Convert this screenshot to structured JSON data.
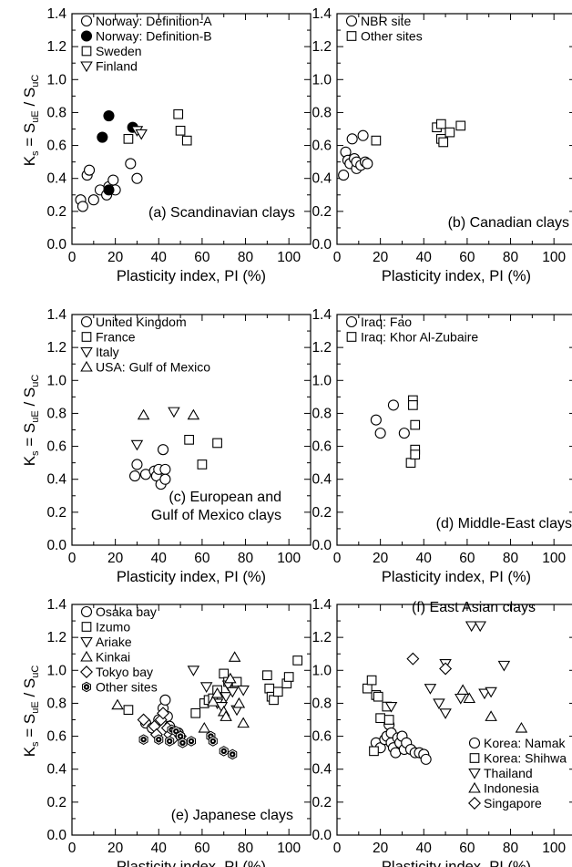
{
  "figure": {
    "ylabel_main": "K",
    "ylabel_sub_s": "s",
    "ylabel_eq": " = S",
    "ylabel_sub_ue": "uE",
    "ylabel_slash": " / S",
    "ylabel_sub_uc": "uC",
    "xlabel": "Plasticity index, PI (%)"
  },
  "chart_data": [
    {
      "type": "scatter",
      "caption_lines": [
        "(a) Scandinavian clays"
      ],
      "xlim": [
        0,
        110
      ],
      "ylim": [
        0,
        1.4
      ],
      "xticks": [
        "0",
        "20",
        "40",
        "60",
        "80",
        "100"
      ],
      "yticks": [
        "0.0",
        "0.2",
        "0.4",
        "0.6",
        "0.8",
        "1.0",
        "1.2",
        "1.4"
      ],
      "series": [
        {
          "name": "Norway: Definition-A",
          "marker": "circle",
          "fill": "#ffffff",
          "points": [
            [
              4,
              0.27
            ],
            [
              5,
              0.23
            ],
            [
              7,
              0.42
            ],
            [
              8,
              0.45
            ],
            [
              10,
              0.27
            ],
            [
              13,
              0.33
            ],
            [
              16,
              0.3
            ],
            [
              17,
              0.35
            ],
            [
              19,
              0.39
            ],
            [
              20,
              0.33
            ],
            [
              27,
              0.49
            ],
            [
              30,
              0.4
            ]
          ]
        },
        {
          "name": "Norway: Definition-B",
          "marker": "circle",
          "fill": "#000000",
          "points": [
            [
              14,
              0.65
            ],
            [
              17,
              0.78
            ],
            [
              17,
              0.33
            ],
            [
              28,
              0.71
            ]
          ]
        },
        {
          "name": "Sweden",
          "marker": "square",
          "fill": "#ffffff",
          "points": [
            [
              26,
              0.64
            ],
            [
              49,
              0.79
            ],
            [
              50,
              0.69
            ],
            [
              53,
              0.63
            ]
          ]
        },
        {
          "name": "Finland",
          "marker": "triangle-down",
          "fill": "#ffffff",
          "points": [
            [
              30,
              0.69
            ],
            [
              32,
              0.67
            ]
          ]
        }
      ]
    },
    {
      "type": "scatter",
      "caption_lines": [
        "(b) Canadian clays"
      ],
      "xlim": [
        0,
        110
      ],
      "ylim": [
        0,
        1.4
      ],
      "xticks": [
        "0",
        "20",
        "40",
        "60",
        "80",
        "100"
      ],
      "yticks": [
        "0.0",
        "0.2",
        "0.4",
        "0.6",
        "0.8",
        "1.0",
        "1.2",
        "1.4"
      ],
      "series": [
        {
          "name": "NBR site",
          "marker": "circle",
          "fill": "#ffffff",
          "points": [
            [
              3,
              0.42
            ],
            [
              4,
              0.56
            ],
            [
              5,
              0.51
            ],
            [
              6,
              0.49
            ],
            [
              7,
              0.64
            ],
            [
              8,
              0.52
            ],
            [
              9,
              0.46
            ],
            [
              9,
              0.5
            ],
            [
              11,
              0.48
            ],
            [
              12,
              0.66
            ],
            [
              13,
              0.5
            ],
            [
              14,
              0.49
            ]
          ]
        },
        {
          "name": "Other sites",
          "marker": "square",
          "fill": "#ffffff",
          "points": [
            [
              18,
              0.63
            ],
            [
              46,
              0.71
            ],
            [
              48,
              0.73
            ],
            [
              48,
              0.64
            ],
            [
              49,
              0.62
            ],
            [
              52,
              0.68
            ],
            [
              57,
              0.72
            ]
          ]
        }
      ]
    },
    {
      "type": "scatter",
      "caption_lines": [
        "(c) European and",
        "Gulf of Mexico clays"
      ],
      "xlim": [
        0,
        110
      ],
      "ylim": [
        0,
        1.4
      ],
      "xticks": [
        "0",
        "20",
        "40",
        "60",
        "80",
        "100"
      ],
      "yticks": [
        "0.0",
        "0.2",
        "0.4",
        "0.6",
        "0.8",
        "1.0",
        "1.2",
        "1.4"
      ],
      "series": [
        {
          "name": "United Kingdom",
          "marker": "circle",
          "fill": "#ffffff",
          "points": [
            [
              29,
              0.42
            ],
            [
              30,
              0.49
            ],
            [
              34,
              0.43
            ],
            [
              38,
              0.45
            ],
            [
              39,
              0.42
            ],
            [
              40,
              0.46
            ],
            [
              41,
              0.37
            ],
            [
              42,
              0.58
            ],
            [
              43,
              0.46
            ],
            [
              43,
              0.4
            ]
          ]
        },
        {
          "name": "France",
          "marker": "square",
          "fill": "#ffffff",
          "points": [
            [
              54,
              0.64
            ],
            [
              60,
              0.49
            ],
            [
              67,
              0.62
            ]
          ]
        },
        {
          "name": "Italy",
          "marker": "triangle-down",
          "fill": "#ffffff",
          "points": [
            [
              30,
              0.61
            ],
            [
              47,
              0.81
            ]
          ]
        },
        {
          "name": "USA: Gulf of Mexico",
          "marker": "triangle-up",
          "fill": "#ffffff",
          "points": [
            [
              33,
              0.79
            ],
            [
              56,
              0.79
            ]
          ]
        }
      ]
    },
    {
      "type": "scatter",
      "caption_lines": [
        "(d) Middle-East clays"
      ],
      "xlim": [
        0,
        110
      ],
      "ylim": [
        0,
        1.4
      ],
      "xticks": [
        "0",
        "20",
        "40",
        "60",
        "80",
        "100"
      ],
      "yticks": [
        "0.0",
        "0.2",
        "0.4",
        "0.6",
        "0.8",
        "1.0",
        "1.2",
        "1.4"
      ],
      "series": [
        {
          "name": "Iraq: Fao",
          "marker": "circle",
          "fill": "#ffffff",
          "points": [
            [
              18,
              0.76
            ],
            [
              20,
              0.68
            ],
            [
              26,
              0.85
            ],
            [
              31,
              0.68
            ]
          ]
        },
        {
          "name": "Iraq: Khor Al-Zubaire",
          "marker": "square",
          "fill": "#ffffff",
          "points": [
            [
              35,
              0.88
            ],
            [
              35,
              0.85
            ],
            [
              34,
              0.5
            ],
            [
              36,
              0.73
            ],
            [
              36,
              0.58
            ],
            [
              36,
              0.55
            ]
          ]
        }
      ]
    },
    {
      "type": "scatter",
      "caption_lines": [
        "(e) Japanese clays"
      ],
      "xlim": [
        0,
        110
      ],
      "ylim": [
        0,
        1.4
      ],
      "xticks": [
        "0",
        "20",
        "40",
        "60",
        "80",
        "100"
      ],
      "yticks": [
        "0.0",
        "0.2",
        "0.4",
        "0.6",
        "0.8",
        "1.0",
        "1.2",
        "1.4"
      ],
      "series": [
        {
          "name": "Osaka bay",
          "marker": "circle",
          "fill": "#ffffff",
          "points": [
            [
              34,
              0.68
            ],
            [
              37,
              0.65
            ],
            [
              40,
              0.7
            ],
            [
              42,
              0.77
            ],
            [
              43,
              0.82
            ],
            [
              44,
              0.72
            ],
            [
              45,
              0.66
            ],
            [
              47,
              0.63
            ],
            [
              49,
              0.62
            ]
          ]
        },
        {
          "name": "Izumo",
          "marker": "square",
          "fill": "#ffffff",
          "points": [
            [
              26,
              0.76
            ],
            [
              57,
              0.74
            ],
            [
              61,
              0.8
            ],
            [
              63,
              0.82
            ],
            [
              65,
              0.83
            ],
            [
              67,
              0.88
            ],
            [
              70,
              0.98
            ],
            [
              72,
              0.93
            ],
            [
              76,
              0.93
            ],
            [
              90,
              0.97
            ],
            [
              91,
              0.89
            ],
            [
              92,
              0.84
            ],
            [
              93,
              0.82
            ],
            [
              95,
              0.87
            ],
            [
              99,
              0.92
            ],
            [
              100,
              0.96
            ],
            [
              104,
              1.06
            ]
          ]
        },
        {
          "name": "Ariake",
          "marker": "triangle-down",
          "fill": "#ffffff",
          "points": [
            [
              56,
              1.0
            ],
            [
              62,
              0.9
            ],
            [
              67,
              0.8
            ],
            [
              69,
              0.78
            ],
            [
              71,
              0.84
            ],
            [
              72,
              0.91
            ],
            [
              74,
              0.87
            ],
            [
              76,
              0.76
            ],
            [
              79,
              0.88
            ]
          ]
        },
        {
          "name": "Kinkai",
          "marker": "triangle-up",
          "fill": "#ffffff",
          "points": [
            [
              21,
              0.79
            ],
            [
              61,
              0.65
            ],
            [
              65,
              0.81
            ],
            [
              67,
              0.86
            ],
            [
              70,
              0.75
            ],
            [
              71,
              0.72
            ],
            [
              73,
              0.95
            ],
            [
              75,
              1.08
            ],
            [
              77,
              0.8
            ],
            [
              79,
              0.68
            ]
          ]
        },
        {
          "name": "Tokyo bay",
          "marker": "diamond",
          "fill": "#ffffff",
          "points": [
            [
              33,
              0.7
            ],
            [
              38,
              0.66
            ],
            [
              39,
              0.61
            ],
            [
              41,
              0.7
            ],
            [
              42,
              0.74
            ],
            [
              44,
              0.65
            ],
            [
              45,
              0.61
            ],
            [
              47,
              0.59
            ],
            [
              50,
              0.6
            ]
          ]
        },
        {
          "name": "Other sites",
          "marker": "hexbolt",
          "fill": "#ffffff",
          "points": [
            [
              33,
              0.58
            ],
            [
              40,
              0.58
            ],
            [
              45,
              0.57
            ],
            [
              46,
              0.64
            ],
            [
              48,
              0.63
            ],
            [
              50,
              0.6
            ],
            [
              51,
              0.56
            ],
            [
              55,
              0.57
            ],
            [
              64,
              0.6
            ],
            [
              65,
              0.57
            ],
            [
              70,
              0.51
            ],
            [
              74,
              0.49
            ]
          ]
        }
      ]
    },
    {
      "type": "scatter",
      "caption_lines": [
        "(f) East Asian clays"
      ],
      "xlim": [
        0,
        110
      ],
      "ylim": [
        0,
        1.4
      ],
      "xticks": [
        "0",
        "20",
        "40",
        "60",
        "80",
        "100"
      ],
      "yticks": [
        "0.0",
        "0.2",
        "0.4",
        "0.6",
        "0.8",
        "1.0",
        "1.2",
        "1.4"
      ],
      "series": [
        {
          "name": "Korea: Namak",
          "marker": "circle",
          "fill": "#ffffff",
          "points": [
            [
              18,
              0.56
            ],
            [
              20,
              0.53
            ],
            [
              22,
              0.58
            ],
            [
              23,
              0.6
            ],
            [
              24,
              0.67
            ],
            [
              25,
              0.62
            ],
            [
              25,
              0.56
            ],
            [
              26,
              0.53
            ],
            [
              27,
              0.5
            ],
            [
              28,
              0.59
            ],
            [
              29,
              0.56
            ],
            [
              30,
              0.6
            ],
            [
              31,
              0.52
            ],
            [
              32,
              0.56
            ],
            [
              34,
              0.52
            ],
            [
              36,
              0.5
            ],
            [
              38,
              0.5
            ],
            [
              40,
              0.49
            ],
            [
              41,
              0.46
            ]
          ]
        },
        {
          "name": "Korea: Shihwa",
          "marker": "square",
          "fill": "#ffffff",
          "points": [
            [
              14,
              0.89
            ],
            [
              16,
              0.94
            ],
            [
              17,
              0.51
            ],
            [
              18,
              0.85
            ],
            [
              19,
              0.84
            ],
            [
              20,
              0.71
            ],
            [
              23,
              0.78
            ],
            [
              24,
              0.7
            ]
          ]
        },
        {
          "name": "Thailand",
          "marker": "triangle-down",
          "fill": "#ffffff",
          "points": [
            [
              25,
              0.78
            ],
            [
              43,
              0.89
            ],
            [
              47,
              0.8
            ],
            [
              50,
              1.04
            ],
            [
              50,
              0.74
            ],
            [
              57,
              0.83
            ],
            [
              62,
              1.27
            ],
            [
              66,
              1.27
            ],
            [
              68,
              0.86
            ],
            [
              71,
              0.87
            ],
            [
              77,
              1.03
            ]
          ]
        },
        {
          "name": "Indonesia",
          "marker": "triangle-up",
          "fill": "#ffffff",
          "points": [
            [
              58,
              0.88
            ],
            [
              61,
              0.83
            ],
            [
              71,
              0.72
            ],
            [
              85,
              0.65
            ]
          ]
        },
        {
          "name": "Singapore",
          "marker": "diamond",
          "fill": "#ffffff",
          "points": [
            [
              35,
              1.07
            ],
            [
              50,
              1.01
            ]
          ]
        }
      ]
    }
  ]
}
